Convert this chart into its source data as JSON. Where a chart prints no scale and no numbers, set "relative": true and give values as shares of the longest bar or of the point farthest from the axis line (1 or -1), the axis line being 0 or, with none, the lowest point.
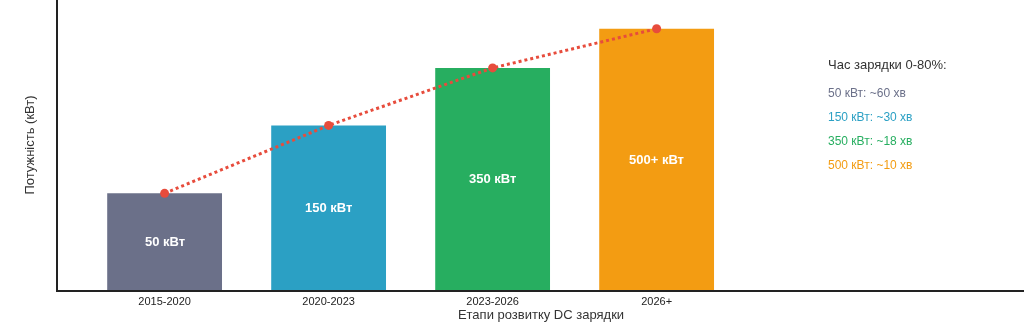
{
  "chart_data": {
    "type": "bar",
    "relative": true,
    "xlabel": "Етапи розвитку DC зарядки",
    "ylabel": "Потужність (кВт)",
    "categories": [
      "2015-2020",
      "2020-2023",
      "2023-2026",
      "2026+"
    ],
    "series": [
      {
        "colors": [
          "#6b7089",
          "#2ba0c4",
          "#27ae60",
          "#f39c12"
        ],
        "values": [
          0.37,
          0.63,
          0.85,
          1.0
        ]
      },
      {
        "type": "line",
        "color": "#e74c3c",
        "values": [
          0.37,
          0.63,
          0.85,
          1.0
        ],
        "line_style": "dotted",
        "marker": "circle"
      }
    ],
    "annotations": [
      "50 кВт",
      "150 кВт",
      "350 кВт",
      "500+ кВт",
      "Час зарядки 0-80%:",
      "50 кВт: ~60 хв",
      "150 кВт: ~30 хв",
      "350 кВт: ~18 хв",
      "500 кВт: ~10 хв"
    ]
  }
}
